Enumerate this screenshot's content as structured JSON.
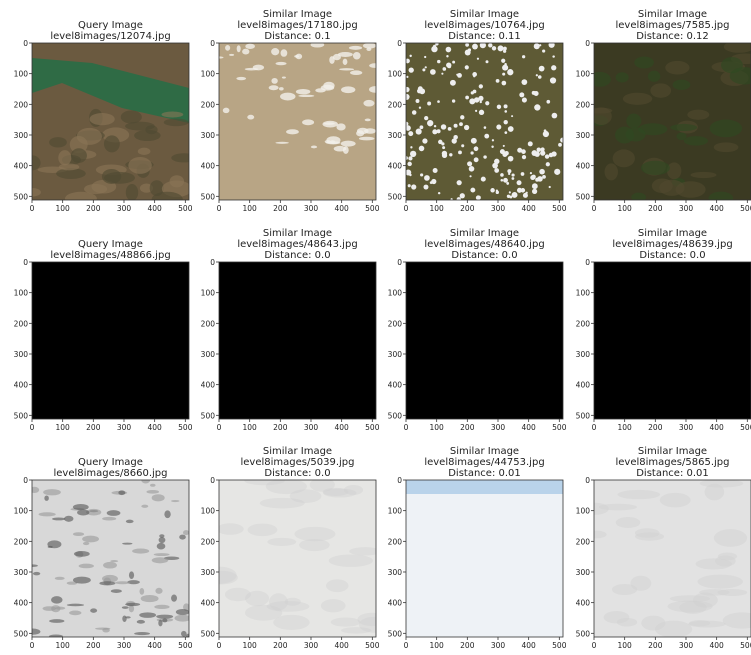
{
  "xticks": [
    0,
    100,
    200,
    300,
    400,
    500
  ],
  "yticks": [
    0,
    100,
    200,
    300,
    400,
    500
  ],
  "xlim": [
    0,
    512
  ],
  "ylim": [
    0,
    512
  ],
  "panels": [
    {
      "title_lines": [
        "Query Image",
        "level8images/12074.jpg"
      ]
    },
    {
      "title_lines": [
        "Similar Image",
        "level8images/17180.jpg",
        "Distance: 0.1"
      ]
    },
    {
      "title_lines": [
        "Similar Image",
        "level8images/10764.jpg",
        "Distance: 0.11"
      ]
    },
    {
      "title_lines": [
        "Similar Image",
        "level8images/7585.jpg",
        "Distance: 0.12"
      ]
    },
    {
      "title_lines": [
        "Query Image",
        "level8images/48866.jpg"
      ]
    },
    {
      "title_lines": [
        "Similar Image",
        "level8images/48643.jpg",
        "Distance: 0.0"
      ]
    },
    {
      "title_lines": [
        "Similar Image",
        "level8images/48640.jpg",
        "Distance: 0.0"
      ]
    },
    {
      "title_lines": [
        "Similar Image",
        "level8images/48639.jpg",
        "Distance: 0.0"
      ]
    },
    {
      "title_lines": [
        "Query Image",
        "level8images/8660.jpg"
      ]
    },
    {
      "title_lines": [
        "Similar Image",
        "level8images/5039.jpg",
        "Distance: 0.0"
      ]
    },
    {
      "title_lines": [
        "Similar Image",
        "level8images/44753.jpg",
        "Distance: 0.01"
      ]
    },
    {
      "title_lines": [
        "Similar Image",
        "level8images/5865.jpg",
        "Distance: 0.01"
      ]
    }
  ]
}
